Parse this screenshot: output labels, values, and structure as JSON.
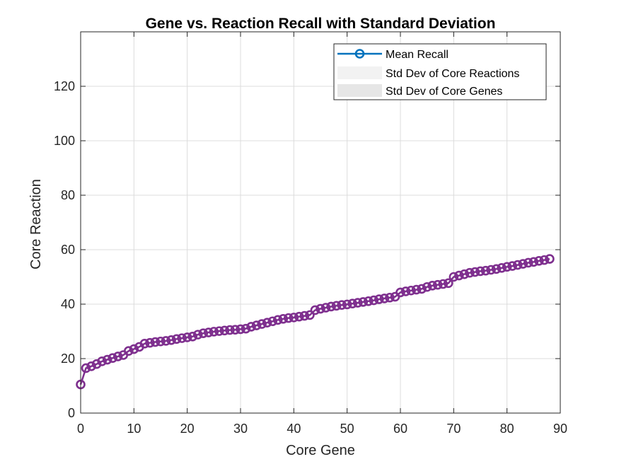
{
  "chart_data": {
    "type": "line",
    "title": "Gene vs. Reaction Recall with Standard Deviation",
    "xlabel": "Core Gene",
    "ylabel": "Core Reaction",
    "xlim": [
      0,
      90
    ],
    "ylim": [
      0,
      140
    ],
    "xticks": [
      0,
      10,
      20,
      30,
      40,
      50,
      60,
      70,
      80,
      90
    ],
    "yticks": [
      0,
      20,
      40,
      60,
      80,
      100,
      120
    ],
    "grid": true,
    "legend_position": "top-right",
    "series": [
      {
        "name": "Mean Recall",
        "color": "#7E2F8E",
        "legend_color": "#0072BD",
        "marker": "circle",
        "x": [
          0,
          1,
          2,
          3,
          4,
          5,
          6,
          7,
          8,
          9,
          10,
          11,
          12,
          13,
          14,
          15,
          16,
          17,
          18,
          19,
          20,
          21,
          22,
          23,
          24,
          25,
          26,
          27,
          28,
          29,
          30,
          31,
          32,
          33,
          34,
          35,
          36,
          37,
          38,
          39,
          40,
          41,
          42,
          43,
          44,
          45,
          46,
          47,
          48,
          49,
          50,
          51,
          52,
          53,
          54,
          55,
          56,
          57,
          58,
          59,
          60,
          61,
          62,
          63,
          64,
          65,
          66,
          67,
          68,
          69,
          70,
          71,
          72,
          73,
          74,
          75,
          76,
          77,
          78,
          79,
          80,
          81,
          82,
          83,
          84,
          85,
          86,
          87,
          88
        ],
        "y": [
          10.5,
          16.5,
          17.2,
          18,
          19,
          19.6,
          20.2,
          20.8,
          21.3,
          22.8,
          23.5,
          24.3,
          25.5,
          25.8,
          26.1,
          26.3,
          26.5,
          26.8,
          27.2,
          27.5,
          27.8,
          28.1,
          28.8,
          29.3,
          29.6,
          29.9,
          30.1,
          30.3,
          30.5,
          30.6,
          30.8,
          31.0,
          31.7,
          32.2,
          32.7,
          33.2,
          33.7,
          34.2,
          34.6,
          34.9,
          35.1,
          35.4,
          35.7,
          36.0,
          37.8,
          38.3,
          38.7,
          39.1,
          39.4,
          39.7,
          39.9,
          40.2,
          40.5,
          40.8,
          41.1,
          41.4,
          41.8,
          42.1,
          42.4,
          42.7,
          44.3,
          44.7,
          45.0,
          45.3,
          45.6,
          46.3,
          46.8,
          47.1,
          47.4,
          47.7,
          50.0,
          50.5,
          51.0,
          51.5,
          51.8,
          52.1,
          52.3,
          52.6,
          52.9,
          53.3,
          53.7,
          54.0,
          54.4,
          54.8,
          55.2,
          55.5,
          55.9,
          56.2,
          56.6
        ]
      }
    ],
    "legend": [
      {
        "label": "Mean Recall",
        "kind": "line-marker",
        "color": "#0072BD"
      },
      {
        "label": "Std Dev of Core Reactions",
        "kind": "patch",
        "color": "#F2F2F2"
      },
      {
        "label": "Std Dev of Core Genes",
        "kind": "patch",
        "color": "#E6E6E6"
      }
    ]
  }
}
